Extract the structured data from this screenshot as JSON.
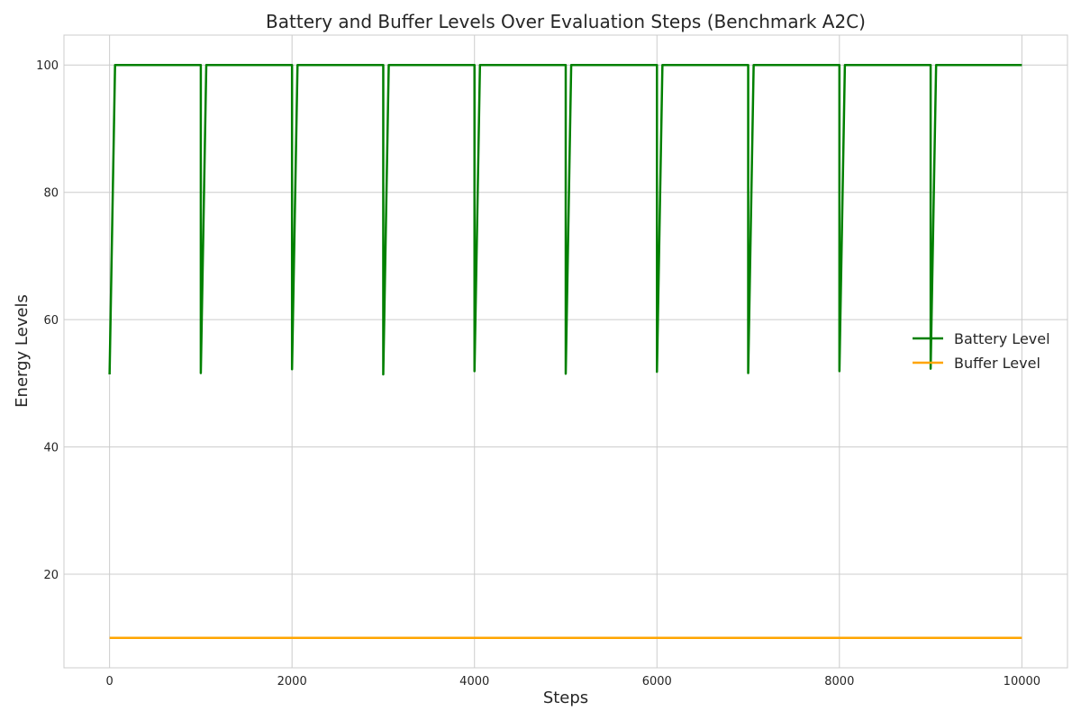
{
  "chart_data": {
    "type": "line",
    "title": "Battery and Buffer Levels Over Evaluation Steps (Benchmark A2C)",
    "xlabel": "Steps",
    "ylabel": "Energy Levels",
    "xlim": [
      -500,
      10500
    ],
    "ylim": [
      5.3,
      104.7
    ],
    "xticks": [
      0,
      2000,
      4000,
      6000,
      8000,
      10000
    ],
    "yticks": [
      20,
      40,
      60,
      80,
      100
    ],
    "grid": true,
    "legend_position": "center-right",
    "series": [
      {
        "name": "Battery Level",
        "color": "#008000",
        "x": [
          0,
          60,
          1000,
          1000,
          1060,
          2000,
          2000,
          2060,
          3000,
          3000,
          3060,
          4000,
          4000,
          4060,
          5000,
          5000,
          5060,
          6000,
          6000,
          6060,
          7000,
          7000,
          7060,
          8000,
          8000,
          8060,
          9000,
          9000,
          9060,
          10000
        ],
        "y": [
          51.4,
          100,
          100,
          51.6,
          100,
          100,
          52.2,
          100,
          100,
          51.4,
          100,
          100,
          51.9,
          100,
          100,
          51.5,
          100,
          100,
          51.8,
          100,
          100,
          51.6,
          100,
          100,
          51.9,
          100,
          100,
          52.3,
          100,
          100
        ]
      },
      {
        "name": "Buffer Level",
        "color": "#FFA500",
        "x": [
          0,
          10000
        ],
        "y": [
          10,
          10
        ]
      }
    ]
  }
}
